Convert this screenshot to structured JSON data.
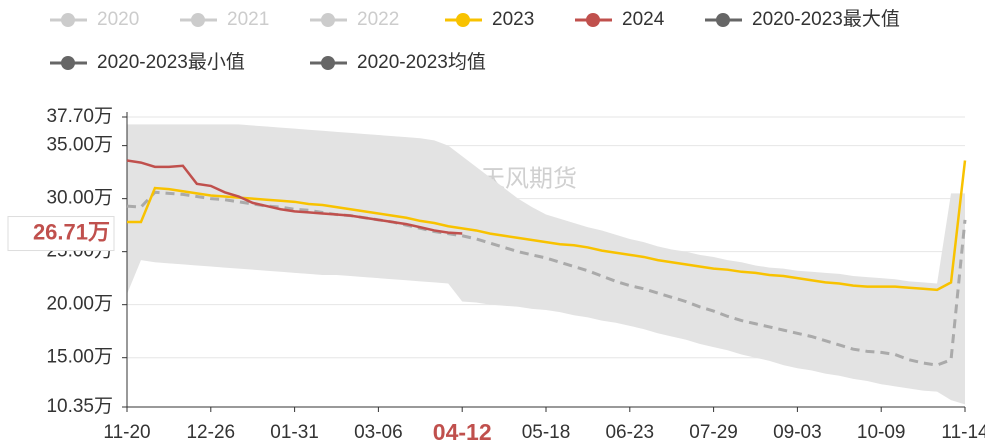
{
  "chart_data": {
    "type": "line",
    "watermark": "紫金天风期货",
    "categories": [
      "11-20",
      null,
      null,
      null,
      null,
      null,
      "12-26",
      null,
      null,
      null,
      null,
      null,
      "01-31",
      null,
      null,
      null,
      null,
      null,
      "03-06",
      null,
      null,
      null,
      null,
      null,
      "04-12",
      null,
      null,
      null,
      null,
      null,
      "05-18",
      null,
      null,
      null,
      null,
      null,
      "06-23",
      null,
      null,
      null,
      null,
      null,
      "07-29",
      null,
      null,
      null,
      null,
      null,
      "09-03",
      null,
      null,
      null,
      null,
      null,
      "10-09",
      null,
      null,
      null,
      null,
      null,
      "11-14"
    ],
    "ylim": [
      10.35,
      37.7
    ],
    "yticks": [
      {
        "value": 10.35,
        "label": "10.35万"
      },
      {
        "value": 15,
        "label": "15.00万"
      },
      {
        "value": 20,
        "label": "20.00万"
      },
      {
        "value": 25,
        "label": "25.00万"
      },
      {
        "value": 30,
        "label": "30.00万"
      },
      {
        "value": 35,
        "label": "35.00万"
      },
      {
        "value": 37.7,
        "label": "37.70万"
      }
    ],
    "grid": true,
    "band_color": "#e3e3e3",
    "axis_pointer": {
      "value": 26.71,
      "label": "26.71万",
      "category": "04-12",
      "color": "#c0504d"
    },
    "series": [
      {
        "name": "2020",
        "color": "#cccccc",
        "inactive": true
      },
      {
        "name": "2021",
        "color": "#cccccc",
        "inactive": true
      },
      {
        "name": "2022",
        "color": "#cccccc",
        "inactive": true
      },
      {
        "name": "2023",
        "color": "#f8c200",
        "values": [
          27.8,
          27.8,
          31.0,
          30.9,
          30.7,
          30.5,
          30.3,
          30.2,
          30.1,
          30.0,
          29.9,
          29.8,
          29.7,
          29.5,
          29.4,
          29.2,
          29.0,
          28.8,
          28.6,
          28.4,
          28.2,
          27.9,
          27.7,
          27.4,
          27.2,
          27.0,
          26.7,
          26.5,
          26.3,
          26.1,
          25.9,
          25.7,
          25.6,
          25.4,
          25.1,
          24.9,
          24.7,
          24.5,
          24.2,
          24.0,
          23.8,
          23.6,
          23.4,
          23.3,
          23.1,
          23.0,
          22.8,
          22.7,
          22.5,
          22.3,
          22.1,
          22.0,
          21.8,
          21.7,
          21.7,
          21.7,
          21.6,
          21.5,
          21.4,
          22.1,
          33.6
        ]
      },
      {
        "name": "2024",
        "color": "#c0504d",
        "values": [
          33.6,
          33.4,
          33.0,
          33.0,
          33.1,
          31.4,
          31.2,
          30.6,
          30.2,
          29.6,
          29.3,
          29.0,
          28.8,
          28.7,
          28.6,
          28.5,
          28.4,
          28.2,
          28.0,
          27.8,
          27.6,
          27.3,
          27.0,
          26.8,
          26.71,
          null,
          null,
          null,
          null,
          null,
          null,
          null,
          null,
          null,
          null,
          null,
          null,
          null,
          null,
          null,
          null,
          null,
          null,
          null,
          null,
          null,
          null,
          null,
          null,
          null,
          null,
          null,
          null,
          null,
          null,
          null,
          null,
          null,
          null,
          null,
          null
        ]
      },
      {
        "name": "2020-2023最大值",
        "color": "#666666",
        "band": "max",
        "values": [
          37.0,
          37.0,
          37.0,
          37.0,
          37.0,
          37.0,
          37.0,
          37.0,
          37.0,
          36.9,
          36.8,
          36.7,
          36.6,
          36.5,
          36.4,
          36.3,
          36.2,
          36.1,
          36.0,
          35.9,
          35.8,
          35.7,
          35.5,
          35.0,
          34.0,
          33.0,
          32.0,
          31.0,
          30.0,
          29.2,
          28.5,
          28.1,
          27.7,
          27.3,
          27.0,
          26.6,
          26.2,
          25.9,
          25.5,
          25.2,
          25.0,
          24.7,
          24.5,
          24.2,
          24.0,
          23.7,
          23.5,
          23.4,
          23.2,
          23.1,
          23.0,
          22.9,
          22.7,
          22.6,
          22.5,
          22.4,
          22.2,
          22.1,
          22.0,
          30.5,
          30.5
        ]
      },
      {
        "name": "2020-2023最小值",
        "color": "#666666",
        "band": "min",
        "values": [
          21.0,
          24.2,
          24.0,
          23.9,
          23.8,
          23.7,
          23.6,
          23.5,
          23.4,
          23.3,
          23.2,
          23.1,
          23.0,
          22.9,
          22.8,
          22.8,
          22.7,
          22.6,
          22.5,
          22.4,
          22.3,
          22.2,
          22.1,
          22.0,
          20.3,
          20.2,
          20.0,
          19.9,
          19.8,
          19.6,
          19.5,
          19.3,
          19.0,
          18.8,
          18.5,
          18.3,
          18.0,
          17.7,
          17.3,
          17.0,
          16.7,
          16.3,
          16.0,
          15.7,
          15.3,
          15.0,
          14.7,
          14.3,
          14.0,
          13.8,
          13.5,
          13.3,
          13.0,
          12.8,
          12.5,
          12.3,
          12.1,
          11.9,
          11.8,
          11.0,
          10.6
        ]
      },
      {
        "name": "2020-2023均值",
        "color": "#666666",
        "line_color": "#aaaaaa",
        "dashed": true,
        "values": [
          29.3,
          29.2,
          30.6,
          30.5,
          30.4,
          30.2,
          30.0,
          29.9,
          29.7,
          29.5,
          29.3,
          29.2,
          29.0,
          28.9,
          28.7,
          28.5,
          28.4,
          28.2,
          28.0,
          27.8,
          27.5,
          27.2,
          26.9,
          26.7,
          26.5,
          26.2,
          25.8,
          25.4,
          25.0,
          24.7,
          24.4,
          24.0,
          23.6,
          23.2,
          22.7,
          22.2,
          21.8,
          21.5,
          21.1,
          20.7,
          20.3,
          19.8,
          19.4,
          18.9,
          18.5,
          18.2,
          17.9,
          17.6,
          17.3,
          17.0,
          16.6,
          16.2,
          15.8,
          15.6,
          15.5,
          15.3,
          14.8,
          14.5,
          14.3,
          14.8,
          28.0
        ]
      }
    ]
  }
}
